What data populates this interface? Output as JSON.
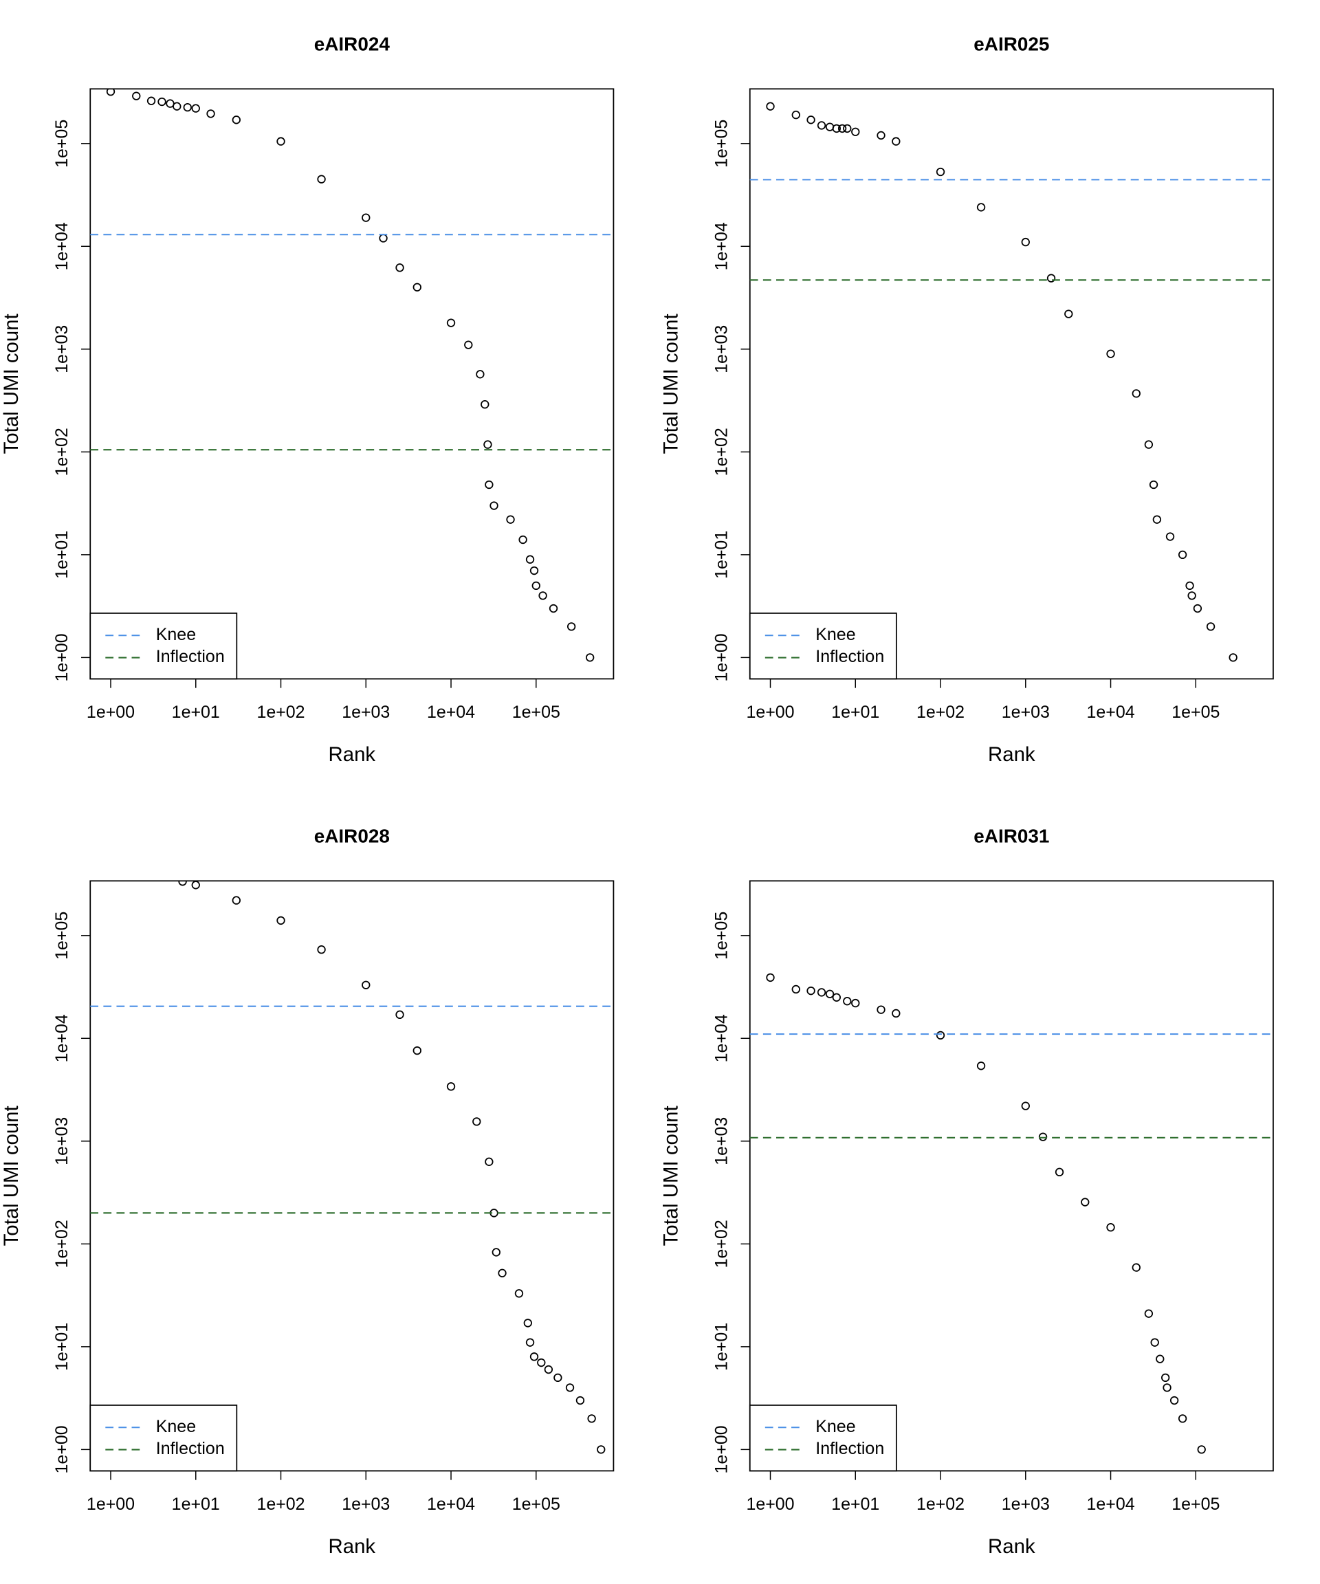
{
  "chart_data": [
    {
      "type": "scatter",
      "title": "eAIR024",
      "xlabel": "Rank",
      "ylabel": "Total UMI count",
      "xlog": true,
      "ylog": true,
      "xlim": [
        0.575,
        813000
      ],
      "ylim": [
        0.62,
        340000
      ],
      "xticks": [
        {
          "value": 1,
          "label": "1e+00"
        },
        {
          "value": 10,
          "label": "1e+01"
        },
        {
          "value": 100,
          "label": "1e+02"
        },
        {
          "value": 1000,
          "label": "1e+03"
        },
        {
          "value": 10000,
          "label": "1e+04"
        },
        {
          "value": 100000,
          "label": "1e+05"
        }
      ],
      "yticks": [
        {
          "value": 1,
          "label": "1e+00"
        },
        {
          "value": 10,
          "label": "1e+01"
        },
        {
          "value": 100,
          "label": "1e+02"
        },
        {
          "value": 1000,
          "label": "1e+03"
        },
        {
          "value": 10000,
          "label": "1e+04"
        },
        {
          "value": 100000,
          "label": "1e+05"
        }
      ],
      "point_color": "#000000",
      "legend": "bottomleft",
      "x": [
        1,
        2,
        3,
        4,
        5,
        6,
        8,
        10,
        15,
        30,
        100,
        300,
        1000,
        1600,
        2500,
        4000,
        10000,
        16000,
        22000,
        25000,
        27000,
        28000,
        32000,
        50000,
        70000,
        85000,
        95000,
        100000,
        120000,
        160000,
        260000,
        430000
      ],
      "y": [
        320000,
        290000,
        260000,
        255000,
        245000,
        230000,
        225000,
        220000,
        195000,
        170000,
        105000,
        45000,
        19000,
        12000,
        6200,
        4000,
        1800,
        1100,
        570,
        290,
        118,
        48,
        30,
        22,
        14,
        9,
        7,
        5,
        4,
        3,
        2,
        1
      ],
      "hlines": [
        {
          "name": "Knee",
          "color": "#4a8fe6",
          "value": 13000
        },
        {
          "name": "Inflection",
          "color": "#2e6e2e",
          "value": 105
        }
      ]
    },
    {
      "type": "scatter",
      "title": "eAIR025",
      "xlabel": "Rank",
      "ylabel": "Total UMI count",
      "xlog": true,
      "ylog": true,
      "xlim": [
        0.575,
        813000
      ],
      "ylim": [
        0.62,
        340000
      ],
      "xticks": [
        {
          "value": 1,
          "label": "1e+00"
        },
        {
          "value": 10,
          "label": "1e+01"
        },
        {
          "value": 100,
          "label": "1e+02"
        },
        {
          "value": 1000,
          "label": "1e+03"
        },
        {
          "value": 10000,
          "label": "1e+04"
        },
        {
          "value": 100000,
          "label": "1e+05"
        }
      ],
      "yticks": [
        {
          "value": 1,
          "label": "1e+00"
        },
        {
          "value": 10,
          "label": "1e+01"
        },
        {
          "value": 100,
          "label": "1e+02"
        },
        {
          "value": 1000,
          "label": "1e+03"
        },
        {
          "value": 10000,
          "label": "1e+04"
        },
        {
          "value": 100000,
          "label": "1e+05"
        }
      ],
      "point_color": "#000000",
      "legend": "bottomleft",
      "x": [
        1,
        2,
        3,
        4,
        5,
        6,
        7,
        8,
        10,
        20,
        30,
        100,
        300,
        1000,
        2000,
        3200,
        10000,
        20000,
        28000,
        32000,
        35000,
        50000,
        70000,
        85000,
        90000,
        105000,
        150000,
        275000
      ],
      "y": [
        230000,
        190000,
        170000,
        150000,
        145000,
        140000,
        140000,
        140000,
        130000,
        120000,
        105000,
        53000,
        24000,
        11000,
        4900,
        2200,
        900,
        370,
        118,
        48,
        22,
        15,
        10,
        5,
        4,
        3,
        2,
        1
      ],
      "hlines": [
        {
          "name": "Knee",
          "color": "#4a8fe6",
          "value": 44500
        },
        {
          "name": "Inflection",
          "color": "#2e6e2e",
          "value": 4700
        }
      ]
    },
    {
      "type": "scatter",
      "title": "eAIR028",
      "xlabel": "Rank",
      "ylabel": "Total UMI count",
      "xlog": true,
      "ylog": true,
      "xlim": [
        0.575,
        813000
      ],
      "ylim": [
        0.62,
        340000
      ],
      "xticks": [
        {
          "value": 1,
          "label": "1e+00"
        },
        {
          "value": 10,
          "label": "1e+01"
        },
        {
          "value": 100,
          "label": "1e+02"
        },
        {
          "value": 1000,
          "label": "1e+03"
        },
        {
          "value": 10000,
          "label": "1e+04"
        },
        {
          "value": 100000,
          "label": "1e+05"
        }
      ],
      "yticks": [
        {
          "value": 1,
          "label": "1e+00"
        },
        {
          "value": 10,
          "label": "1e+01"
        },
        {
          "value": 100,
          "label": "1e+02"
        },
        {
          "value": 1000,
          "label": "1e+03"
        },
        {
          "value": 10000,
          "label": "1e+04"
        },
        {
          "value": 100000,
          "label": "1e+05"
        }
      ],
      "point_color": "#000000",
      "legend": "bottomleft",
      "x": [
        7,
        10,
        30,
        100,
        300,
        1000,
        2500,
        4000,
        10000,
        20000,
        28000,
        32000,
        34000,
        40000,
        63000,
        80000,
        85000,
        95000,
        115000,
        140000,
        180000,
        250000,
        330000,
        450000,
        580000
      ],
      "y": [
        335000,
        310000,
        220000,
        140000,
        73000,
        33000,
        17000,
        7600,
        3400,
        1550,
        630,
        200,
        83,
        52,
        33,
        17,
        11,
        8,
        7,
        6,
        5,
        4,
        3,
        2,
        1
      ],
      "hlines": [
        {
          "name": "Knee",
          "color": "#4a8fe6",
          "value": 20500
        },
        {
          "name": "Inflection",
          "color": "#2e6e2e",
          "value": 200
        }
      ]
    },
    {
      "type": "scatter",
      "title": "eAIR031",
      "xlabel": "Rank",
      "ylabel": "Total UMI count",
      "xlog": true,
      "ylog": true,
      "xlim": [
        0.575,
        813000
      ],
      "ylim": [
        0.62,
        340000
      ],
      "xticks": [
        {
          "value": 1,
          "label": "1e+00"
        },
        {
          "value": 10,
          "label": "1e+01"
        },
        {
          "value": 100,
          "label": "1e+02"
        },
        {
          "value": 1000,
          "label": "1e+03"
        },
        {
          "value": 10000,
          "label": "1e+04"
        },
        {
          "value": 100000,
          "label": "1e+05"
        }
      ],
      "yticks": [
        {
          "value": 1,
          "label": "1e+00"
        },
        {
          "value": 10,
          "label": "1e+01"
        },
        {
          "value": 100,
          "label": "1e+02"
        },
        {
          "value": 1000,
          "label": "1e+03"
        },
        {
          "value": 10000,
          "label": "1e+04"
        },
        {
          "value": 100000,
          "label": "1e+05"
        }
      ],
      "point_color": "#000000",
      "legend": "bottomleft",
      "x": [
        1,
        2,
        3,
        4,
        5,
        6,
        8,
        10,
        20,
        30,
        100,
        300,
        1000,
        1600,
        2500,
        5000,
        10000,
        20000,
        28000,
        33000,
        38000,
        44000,
        46000,
        56000,
        70000,
        117000
      ],
      "y": [
        39000,
        30000,
        29000,
        28000,
        27000,
        25000,
        23000,
        22000,
        19000,
        17500,
        10700,
        5400,
        2200,
        1100,
        500,
        255,
        145,
        59,
        21,
        11,
        7.6,
        5,
        4,
        3,
        2,
        1
      ],
      "hlines": [
        {
          "name": "Knee",
          "color": "#4a8fe6",
          "value": 11000
        },
        {
          "name": "Inflection",
          "color": "#2e6e2e",
          "value": 1080
        }
      ]
    }
  ]
}
